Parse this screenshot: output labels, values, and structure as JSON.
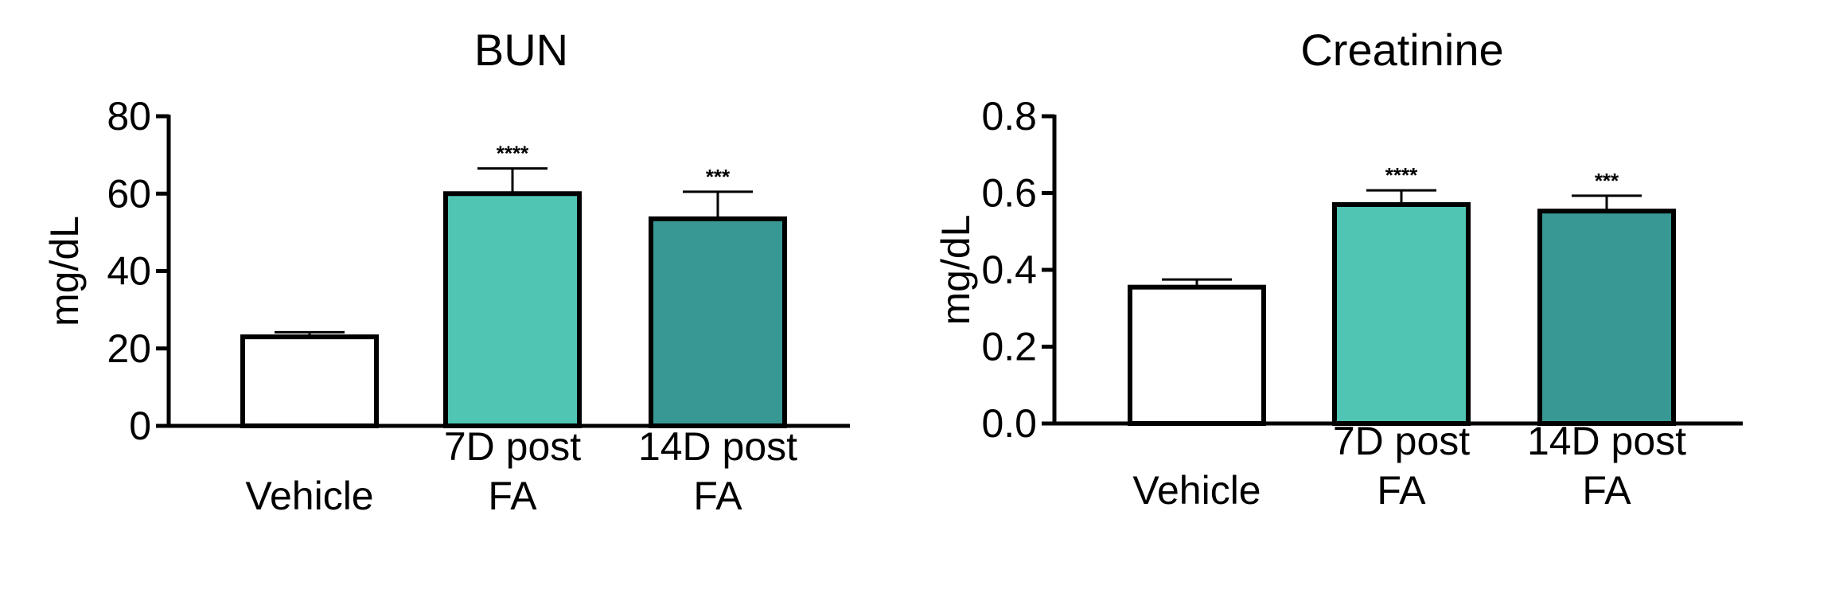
{
  "chart_data": [
    {
      "type": "bar",
      "title": "BUN",
      "xlabel": "",
      "ylabel": "mg/dL",
      "ylim": [
        0,
        80
      ],
      "yticks": [
        "0",
        "20",
        "40",
        "60",
        "80"
      ],
      "categories": [
        [
          "Vehicle"
        ],
        [
          "7D post",
          "FA"
        ],
        [
          "14D post",
          "FA"
        ]
      ],
      "values": [
        23,
        60,
        53.5
      ],
      "errors": [
        1.2,
        6.5,
        7
      ],
      "significance": [
        "",
        "****",
        "***"
      ],
      "colors": [
        "#ffffff",
        "#50c5b3",
        "#389893"
      ],
      "grid": false
    },
    {
      "type": "bar",
      "title": "Creatinine",
      "xlabel": "",
      "ylabel": "mg/dL",
      "ylim": [
        0,
        0.8
      ],
      "yticks": [
        "0.0",
        "0.2",
        "0.4",
        "0.6",
        "0.8"
      ],
      "categories": [
        [
          "Vehicle"
        ],
        [
          "7D post",
          "FA"
        ],
        [
          "14D post",
          "FA"
        ]
      ],
      "values": [
        0.355,
        0.57,
        0.553
      ],
      "errors": [
        0.02,
        0.037,
        0.04
      ],
      "significance": [
        "",
        "****",
        "***"
      ],
      "colors": [
        "#ffffff",
        "#50c5b3",
        "#389893"
      ],
      "grid": false
    }
  ]
}
